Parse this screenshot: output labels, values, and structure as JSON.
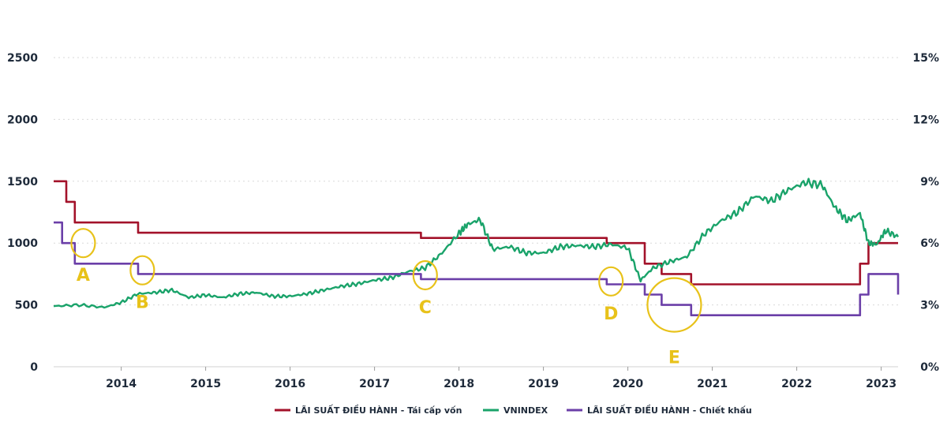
{
  "chart_data": {
    "type": "line",
    "title": "",
    "xlabel": "",
    "ylabel_left": "",
    "ylabel_right": "",
    "x_range": [
      2013.2,
      2023.2
    ],
    "y_left_range": [
      0,
      2500
    ],
    "y_right_range": [
      0,
      15
    ],
    "y_left_ticks": [
      "0",
      "500",
      "1000",
      "1500",
      "2000",
      "2500"
    ],
    "y_right_ticks": [
      "0%",
      "3%",
      "6%",
      "9%",
      "12%",
      "15%"
    ],
    "x_ticks": [
      {
        "value": 2014.0,
        "label": "2014"
      },
      {
        "value": 2015.0,
        "label": "2015"
      },
      {
        "value": 2016.0,
        "label": "2016"
      },
      {
        "value": 2017.0,
        "label": "2017"
      },
      {
        "value": 2018.0,
        "label": "2018"
      },
      {
        "value": 2019.0,
        "label": "2019"
      },
      {
        "value": 2020.0,
        "label": "2020"
      },
      {
        "value": 2021.0,
        "label": "2021"
      },
      {
        "value": 2022.0,
        "label": "2022"
      },
      {
        "value": 2023.0,
        "label": "2023"
      }
    ],
    "grid": true,
    "legend_position": "bottom",
    "series": [
      {
        "name": "LÃI SUẤT ĐIỀU HÀNH - Tái cấp vốn",
        "color": "#a3122a",
        "axis": "right",
        "step": true,
        "points": [
          [
            2013.2,
            9.0
          ],
          [
            2013.35,
            8.0
          ],
          [
            2013.45,
            7.0
          ],
          [
            2014.2,
            6.5
          ],
          [
            2017.55,
            6.25
          ],
          [
            2019.75,
            6.0
          ],
          [
            2020.2,
            5.0
          ],
          [
            2020.4,
            4.5
          ],
          [
            2020.75,
            4.0
          ],
          [
            2022.75,
            5.0
          ],
          [
            2022.85,
            6.0
          ],
          [
            2023.2,
            6.0
          ]
        ]
      },
      {
        "name": "VNINDEX",
        "color": "#1aa36a",
        "axis": "left",
        "step": false,
        "points": [
          [
            2013.2,
            490
          ],
          [
            2013.5,
            500
          ],
          [
            2013.8,
            480
          ],
          [
            2014.0,
            520
          ],
          [
            2014.2,
            590
          ],
          [
            2014.4,
            600
          ],
          [
            2014.6,
            620
          ],
          [
            2014.8,
            560
          ],
          [
            2015.0,
            580
          ],
          [
            2015.2,
            560
          ],
          [
            2015.4,
            590
          ],
          [
            2015.6,
            600
          ],
          [
            2015.8,
            570
          ],
          [
            2016.0,
            570
          ],
          [
            2016.2,
            590
          ],
          [
            2016.4,
            620
          ],
          [
            2016.6,
            650
          ],
          [
            2016.8,
            670
          ],
          [
            2017.0,
            700
          ],
          [
            2017.2,
            720
          ],
          [
            2017.4,
            770
          ],
          [
            2017.6,
            800
          ],
          [
            2017.8,
            920
          ],
          [
            2018.0,
            1080
          ],
          [
            2018.1,
            1150
          ],
          [
            2018.25,
            1190
          ],
          [
            2018.4,
            950
          ],
          [
            2018.6,
            970
          ],
          [
            2018.8,
            920
          ],
          [
            2019.0,
            920
          ],
          [
            2019.2,
            970
          ],
          [
            2019.4,
            980
          ],
          [
            2019.6,
            970
          ],
          [
            2019.8,
            990
          ],
          [
            2020.0,
            960
          ],
          [
            2020.15,
            700
          ],
          [
            2020.3,
            800
          ],
          [
            2020.5,
            850
          ],
          [
            2020.7,
            890
          ],
          [
            2020.9,
            1070
          ],
          [
            2021.1,
            1180
          ],
          [
            2021.3,
            1250
          ],
          [
            2021.5,
            1380
          ],
          [
            2021.7,
            1340
          ],
          [
            2021.9,
            1430
          ],
          [
            2022.1,
            1490
          ],
          [
            2022.3,
            1470
          ],
          [
            2022.45,
            1290
          ],
          [
            2022.6,
            1180
          ],
          [
            2022.75,
            1240
          ],
          [
            2022.85,
            1000
          ],
          [
            2022.95,
            990
          ],
          [
            2023.05,
            1100
          ],
          [
            2023.2,
            1050
          ]
        ]
      },
      {
        "name": "LÃI SUẤT ĐIỀU HÀNH - Chiết khấu",
        "color": "#6b3fa8",
        "axis": "right",
        "step": true,
        "points": [
          [
            2013.2,
            7.0
          ],
          [
            2013.3,
            6.0
          ],
          [
            2013.45,
            5.0
          ],
          [
            2014.2,
            4.5
          ],
          [
            2017.55,
            4.25
          ],
          [
            2019.75,
            4.0
          ],
          [
            2020.2,
            3.5
          ],
          [
            2020.4,
            3.0
          ],
          [
            2020.75,
            2.5
          ],
          [
            2022.75,
            3.5
          ],
          [
            2022.85,
            4.5
          ],
          [
            2023.15,
            4.5
          ],
          [
            2023.2,
            3.5
          ]
        ]
      }
    ],
    "annotations": [
      {
        "label": "A",
        "x": 2013.55,
        "y_left": 1000
      },
      {
        "label": "B",
        "x": 2014.25,
        "y_left": 780
      },
      {
        "label": "C",
        "x": 2017.6,
        "y_left": 740
      },
      {
        "label": "D",
        "x": 2019.8,
        "y_left": 690
      },
      {
        "label": "E",
        "x": 2020.55,
        "y_left": 500
      }
    ]
  }
}
